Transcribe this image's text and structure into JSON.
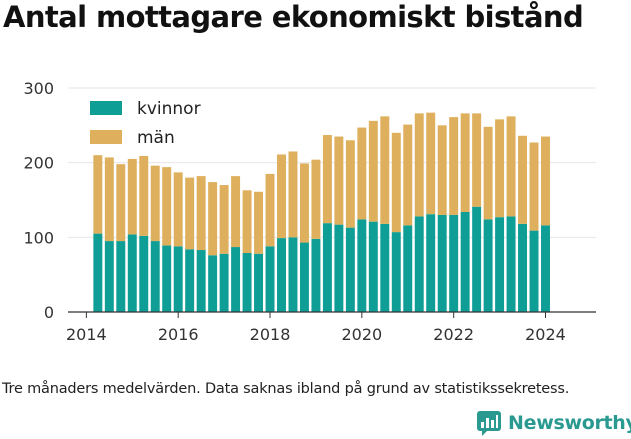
{
  "title": "Antal mottagare ekonomiskt bistånd",
  "footnote": "Tre månaders medelvärden. Data saknas ibland på grund av statistikssekretess.",
  "brand": {
    "name": "Newsworthy",
    "icon": "newsworthy-logo-icon",
    "color": "#2a9a91"
  },
  "chart_data": {
    "type": "bar",
    "stacked": true,
    "title": "Antal mottagare ekonomiskt bistånd",
    "xlabel": "",
    "ylabel": "",
    "ylim": [
      0,
      300
    ],
    "xlim": [
      2013.6,
      2025.1
    ],
    "yticks": [
      0,
      100,
      200,
      300
    ],
    "xticks": [
      2014,
      2016,
      2018,
      2020,
      2022,
      2024
    ],
    "grid": "horizontal",
    "legend_position": "top-left",
    "x": [
      2014.25,
      2014.5,
      2014.75,
      2015.0,
      2015.25,
      2015.5,
      2015.75,
      2016.0,
      2016.25,
      2016.5,
      2016.75,
      2017.0,
      2017.25,
      2017.5,
      2017.75,
      2018.0,
      2018.25,
      2018.5,
      2018.75,
      2019.0,
      2019.25,
      2019.5,
      2019.75,
      2020.0,
      2020.25,
      2020.5,
      2020.75,
      2021.0,
      2021.25,
      2021.5,
      2021.75,
      2022.0,
      2022.25,
      2022.5,
      2022.75,
      2023.0,
      2023.25,
      2023.5,
      2023.75,
      2024.0
    ],
    "series": [
      {
        "name": "kvinnor",
        "color": "#0e9e96",
        "values": [
          105,
          95,
          95,
          104,
          102,
          95,
          89,
          88,
          84,
          83,
          76,
          78,
          87,
          79,
          78,
          88,
          99,
          100,
          93,
          98,
          119,
          117,
          113,
          124,
          121,
          118,
          107,
          116,
          128,
          131,
          130,
          130,
          134,
          141,
          124,
          127,
          128,
          118,
          109,
          116
        ]
      },
      {
        "name": "män",
        "color": "#deaf5d",
        "values": [
          105,
          112,
          103,
          101,
          107,
          101,
          105,
          99,
          96,
          99,
          98,
          92,
          95,
          84,
          83,
          97,
          112,
          115,
          106,
          106,
          118,
          118,
          117,
          123,
          135,
          144,
          133,
          135,
          138,
          136,
          120,
          131,
          132,
          125,
          124,
          131,
          134,
          118,
          118,
          119
        ]
      }
    ]
  }
}
